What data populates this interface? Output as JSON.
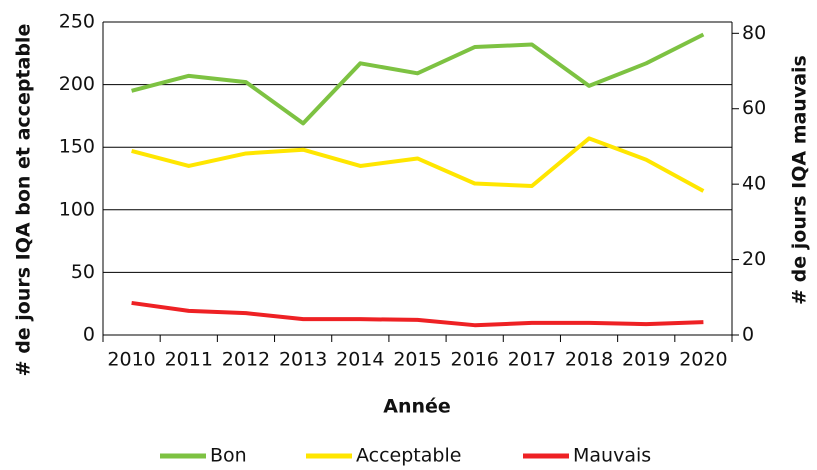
{
  "chart_data": {
    "type": "line",
    "categories": [
      "2010",
      "2011",
      "2012",
      "2013",
      "2014",
      "2015",
      "2016",
      "2017",
      "2018",
      "2019",
      "2020"
    ],
    "x_label": "Année",
    "y_label": "# de jours IQA bon et acceptable",
    "y2_label": "# de jours IQA mauvais",
    "ylim": [
      0,
      250
    ],
    "yticks": [
      0,
      50,
      100,
      150,
      200,
      250
    ],
    "y2lim": [
      0,
      83
    ],
    "y2ticks": [
      0,
      20,
      40,
      60,
      80
    ],
    "grid": true,
    "legend": "bottom",
    "series": [
      {
        "name": "Bon",
        "color": "#7dc242",
        "values": [
          195,
          207,
          202,
          169,
          217,
          209,
          230,
          232,
          199,
          217,
          240
        ]
      },
      {
        "name": "Acceptable",
        "color": "#ffe600",
        "values": [
          147,
          135,
          145,
          148,
          135,
          141,
          121,
          119,
          157,
          140,
          115
        ]
      },
      {
        "name": "Mauvais",
        "color": "#ee2124",
        "axis": "y2",
        "values": [
          8.5,
          6.4,
          5.8,
          4.2,
          4.2,
          4,
          2.6,
          3.2,
          3.2,
          2.9,
          3.4
        ]
      }
    ]
  }
}
